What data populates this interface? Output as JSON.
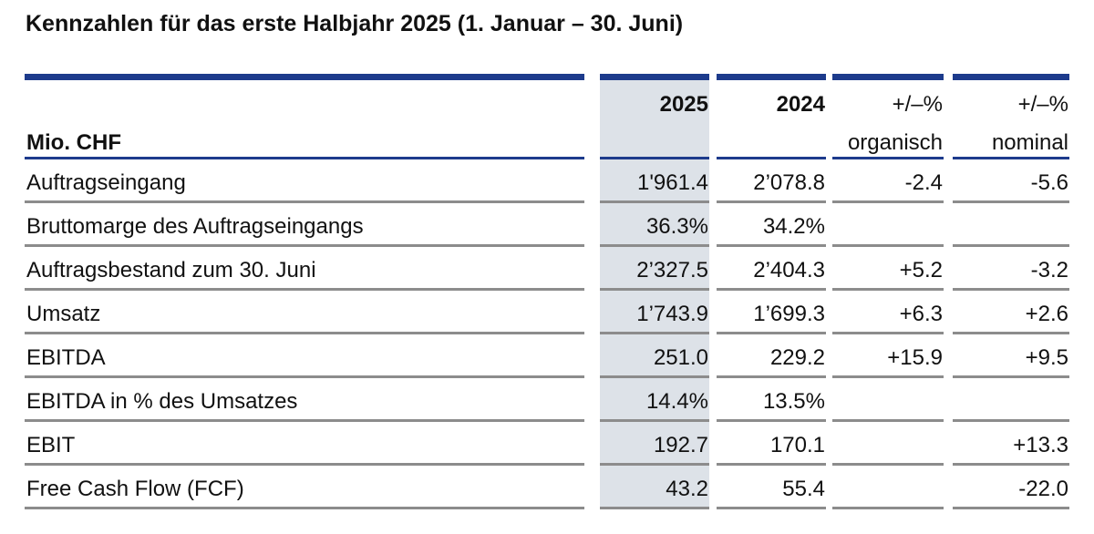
{
  "title": "Kennzahlen für das erste Halbjahr 2025 (1. Januar – 30. Juni)",
  "header": {
    "unit": "Mio. CHF",
    "col_2025": "2025",
    "col_2024": "2024",
    "col_org_top": "+/–%",
    "col_org_bottom": "organisch",
    "col_nom_top": "+/–%",
    "col_nom_bottom": "nominal"
  },
  "rows": [
    {
      "label": "Auftragseingang",
      "v2025": "1'961.4",
      "v2024": "2’078.8",
      "org": "-2.4",
      "nom": "-5.6"
    },
    {
      "label": "Bruttomarge des Auftragseingangs",
      "v2025": "36.3%",
      "v2024": "34.2%",
      "org": "",
      "nom": ""
    },
    {
      "label": "Auftragsbestand zum 30. Juni",
      "v2025": "2’327.5",
      "v2024": "2’404.3",
      "org": "+5.2",
      "nom": "-3.2"
    },
    {
      "label": "Umsatz",
      "v2025": "1’743.9",
      "v2024": "1’699.3",
      "org": "+6.3",
      "nom": "+2.6"
    },
    {
      "label": "EBITDA",
      "v2025": "251.0",
      "v2024": "229.2",
      "org": "+15.9",
      "nom": "+9.5"
    },
    {
      "label": "EBITDA in % des Umsatzes",
      "v2025": "14.4%",
      "v2024": "13.5%",
      "org": "",
      "nom": ""
    },
    {
      "label": "EBIT",
      "v2025": "192.7",
      "v2024": "170.1",
      "org": "",
      "nom": "+13.3"
    },
    {
      "label": "Free Cash Flow (FCF)",
      "v2025": "43.2",
      "v2024": "55.4",
      "org": "",
      "nom": "-22.0"
    }
  ],
  "colors": {
    "accent_blue": "#1d3b8c",
    "shade": "#dde2e8",
    "row_line": "#8c8c8c"
  }
}
